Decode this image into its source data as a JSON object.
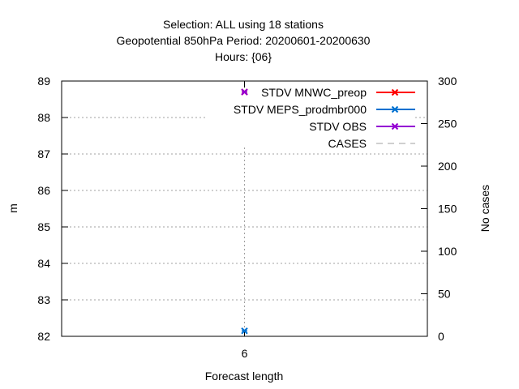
{
  "chart_data": {
    "type": "line",
    "title_lines": [
      "Selection: ALL using    18 stations",
      "Geopotential 850hPa   Period: 20200601-20200630",
      "Hours: {06}"
    ],
    "xlabel": "Forecast length",
    "ylabel": "m",
    "y2label": "No cases",
    "x_ticks": [
      6
    ],
    "x_tick_labels": [
      "6"
    ],
    "xlim": [
      3,
      9
    ],
    "ylim": [
      82,
      89
    ],
    "y_ticks": [
      82,
      83,
      84,
      85,
      86,
      87,
      88,
      89
    ],
    "y2lim": [
      0,
      300
    ],
    "y2_ticks": [
      0,
      50,
      100,
      150,
      200,
      250,
      300
    ],
    "grid": true,
    "legend_position": "top-right",
    "series": [
      {
        "name": "STDV MNWC_preop",
        "color": "#ff0000",
        "marker": "x",
        "axis": "y",
        "x": [
          6
        ],
        "y": [
          88.7
        ]
      },
      {
        "name": "STDV MEPS_prodmbr000",
        "color": "#0070d0",
        "marker": "x",
        "axis": "y",
        "x": [
          6
        ],
        "y": [
          82.15
        ]
      },
      {
        "name": "STDV OBS",
        "color": "#9400d3",
        "marker": "x",
        "axis": "y",
        "x": [
          6
        ],
        "y": [
          88.7
        ]
      },
      {
        "name": "CASES",
        "color": "#a0a0a0",
        "marker": "dash",
        "axis": "y2",
        "x": [
          6
        ],
        "y": [
          18
        ]
      }
    ]
  }
}
